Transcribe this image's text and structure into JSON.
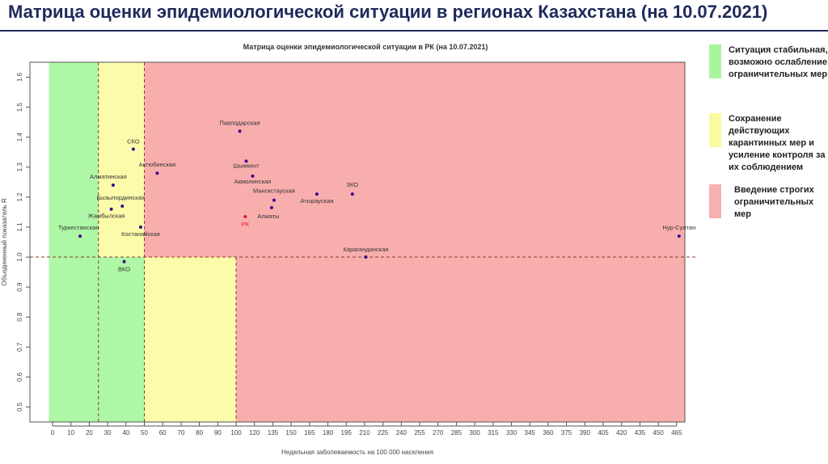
{
  "slide_title": "Матрица оценки эпидемиологической ситуации в регионах Казахстана (на 10.07.2021)",
  "legend": [
    {
      "label": "Ситуация стабильная,\nвозможно ослабление\nограничительных мер",
      "color": "#a8f5a0"
    },
    {
      "label": "Сохранение\nдействующих\nкарантинных мер и\nусиление контроля за\nих соблюдением",
      "color": "#fafaa0"
    },
    {
      "label": "Введение строгих\nограничительных\nмер",
      "color": "#f7b0b0"
    }
  ],
  "colors": {
    "green": "#aef7a6",
    "yellow": "#fbfbaa",
    "red": "#f9aeae",
    "point": "#3a0a8c",
    "rk": "#e31a1c",
    "title": "#1f2a5a"
  },
  "chart_data": {
    "type": "scatter",
    "title": "Матрица оценки эпидемиологической ситуации в РК (на 10.07.2021)",
    "xlabel": "Недельная заболеваемость на 100 000 населения",
    "ylabel": "Объединенный показатель R",
    "xlim": [
      -2,
      482
    ],
    "ylim": [
      0.45,
      1.65
    ],
    "x_ticks": [
      0,
      10,
      20,
      30,
      40,
      50,
      60,
      70,
      80,
      90,
      100,
      120,
      135,
      150,
      165,
      180,
      195,
      210,
      225,
      240,
      255,
      270,
      285,
      300,
      315,
      330,
      345,
      360,
      375,
      390,
      405,
      420,
      435,
      450,
      465
    ],
    "y_ticks": [
      0.5,
      0.6,
      0.7,
      0.8,
      0.9,
      1.0,
      1.1,
      1.2,
      1.3,
      1.4,
      1.5,
      1.6
    ],
    "zones": [
      {
        "name": "green",
        "x": [
          -2,
          50
        ],
        "y": [
          0.45,
          1.65
        ]
      },
      {
        "name": "yellow",
        "x": [
          25,
          50
        ],
        "y": [
          1.0,
          1.65
        ]
      },
      {
        "name": "yellow",
        "x": [
          50,
          100
        ],
        "y": [
          0.45,
          1.0
        ]
      },
      {
        "name": "red",
        "x": [
          50,
          482
        ],
        "y": [
          1.0,
          1.65
        ]
      },
      {
        "name": "red",
        "x": [
          100,
          482
        ],
        "y": [
          0.45,
          1.0
        ]
      }
    ],
    "dashed_lines": {
      "vertical": [
        25,
        50,
        100
      ],
      "horizontal": [
        1.0
      ]
    },
    "points": [
      {
        "label": "Павлодарская",
        "x": 104,
        "y": 1.42
      },
      {
        "label": "СКО",
        "x": 44,
        "y": 1.36
      },
      {
        "label": "Актюбинская",
        "x": 57,
        "y": 1.28
      },
      {
        "label": "Шымкент",
        "x": 111,
        "y": 1.32
      },
      {
        "label": "Акмолинская",
        "x": 118,
        "y": 1.27
      },
      {
        "label": "Алматинская",
        "x": 33,
        "y": 1.24
      },
      {
        "label": "Кызылординская",
        "x": 38,
        "y": 1.17
      },
      {
        "label": "Жамбылская",
        "x": 32,
        "y": 1.16
      },
      {
        "label": "Мангистауская",
        "x": 136,
        "y": 1.19
      },
      {
        "label": "Атырауская",
        "x": 171,
        "y": 1.21
      },
      {
        "label": "ЗКО",
        "x": 200,
        "y": 1.21
      },
      {
        "label": "Алматы",
        "x": 134,
        "y": 1.165
      },
      {
        "label": "РК",
        "x": 110,
        "y": 1.135,
        "highlight": true
      },
      {
        "label": "Костанайская",
        "x": 48,
        "y": 1.1
      },
      {
        "label": "Туркестанская",
        "x": 15,
        "y": 1.07
      },
      {
        "label": "Нур-Султан",
        "x": 467,
        "y": 1.07
      },
      {
        "label": "Карагандинская",
        "x": 211,
        "y": 1.0
      },
      {
        "label": "ВКО",
        "x": 39,
        "y": 0.985
      }
    ]
  }
}
